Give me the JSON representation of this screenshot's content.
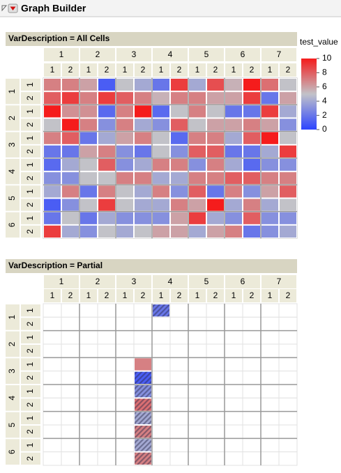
{
  "header": {
    "title": "Graph Builder"
  },
  "chart_data": [
    {
      "type": "heatmap",
      "title": "VarDescription = All Cells",
      "x_groups": [
        "1",
        "2",
        "3",
        "4",
        "5",
        "6",
        "7"
      ],
      "x_subgroups": [
        "1",
        "2"
      ],
      "y_groups": [
        "1",
        "2",
        "3",
        "4",
        "5",
        "6"
      ],
      "y_subgroups": [
        "1",
        "2"
      ],
      "values": [
        [
          7,
          7,
          6,
          1,
          5,
          4,
          2,
          9,
          4,
          8.5,
          5.5,
          10,
          7.5,
          5
        ],
        [
          8,
          9,
          7,
          9,
          8,
          7,
          5.5,
          7,
          7,
          6,
          6,
          9,
          2,
          6
        ],
        [
          10,
          6.5,
          6.5,
          1.5,
          7,
          10,
          1.5,
          5,
          7,
          5,
          2,
          2,
          9,
          4
        ],
        [
          5,
          10,
          7,
          3,
          7,
          4,
          3,
          8,
          5,
          6,
          6,
          7,
          6,
          3
        ],
        [
          7,
          8,
          2,
          4,
          6,
          7,
          5,
          1.5,
          7,
          7,
          4,
          8,
          10,
          5
        ],
        [
          2,
          2,
          6,
          7,
          3,
          2,
          5,
          3,
          8,
          8,
          2,
          2,
          4,
          9
        ],
        [
          1.5,
          4,
          5,
          8,
          3,
          4,
          7,
          7,
          3,
          7,
          4,
          1.5,
          3,
          3
        ],
        [
          3,
          3,
          5,
          5,
          7,
          7,
          4,
          4,
          7,
          7,
          8,
          8,
          7,
          7
        ],
        [
          4,
          7,
          2,
          7,
          5,
          4,
          7,
          3,
          8,
          2,
          7,
          3,
          6,
          8
        ],
        [
          1,
          3,
          5,
          9,
          5,
          4,
          4,
          7,
          6,
          10,
          4,
          7,
          4,
          5
        ],
        [
          2,
          5,
          2,
          4,
          3,
          3,
          3,
          6,
          9,
          4,
          3,
          8,
          3,
          3
        ],
        [
          9,
          4,
          3,
          5,
          4,
          5,
          6,
          6,
          4,
          6,
          7,
          2,
          3,
          4
        ]
      ],
      "colorbar": {
        "title": "test_value",
        "lim": [
          0,
          10
        ],
        "ticks": [
          0,
          2,
          4,
          6,
          8,
          10
        ],
        "colors": [
          "#2c44ff",
          "#c2c2c8",
          "#f51c1c"
        ]
      }
    },
    {
      "type": "heatmap",
      "title": "VarDescription = Partial",
      "x_groups": [
        "1",
        "2",
        "3",
        "4",
        "5",
        "6",
        "7"
      ],
      "x_subgroups": [
        "1",
        "2"
      ],
      "y_groups": [
        "1",
        "2",
        "3",
        "4",
        "5",
        "6"
      ],
      "y_subgroups": [
        "1",
        "2"
      ],
      "values": [
        [
          null,
          null,
          null,
          null,
          null,
          null,
          2,
          null,
          null,
          null,
          null,
          null,
          null,
          null
        ],
        [
          null,
          null,
          null,
          null,
          null,
          null,
          null,
          null,
          null,
          null,
          null,
          null,
          null,
          null
        ],
        [
          null,
          null,
          null,
          null,
          null,
          null,
          null,
          null,
          null,
          null,
          null,
          null,
          null,
          null
        ],
        [
          null,
          null,
          null,
          null,
          null,
          null,
          null,
          null,
          null,
          null,
          null,
          null,
          null,
          null
        ],
        [
          null,
          null,
          null,
          null,
          null,
          7,
          null,
          null,
          null,
          null,
          null,
          null,
          null,
          null
        ],
        [
          null,
          null,
          null,
          null,
          null,
          1,
          null,
          null,
          null,
          null,
          null,
          null,
          null,
          null
        ],
        [
          null,
          null,
          null,
          null,
          null,
          3,
          null,
          null,
          null,
          null,
          null,
          null,
          null,
          null
        ],
        [
          null,
          null,
          null,
          null,
          null,
          7.5,
          null,
          null,
          null,
          null,
          null,
          null,
          null,
          null
        ],
        [
          null,
          null,
          null,
          null,
          null,
          4,
          null,
          null,
          null,
          null,
          null,
          null,
          null,
          null
        ],
        [
          null,
          null,
          null,
          null,
          null,
          7,
          null,
          null,
          null,
          null,
          null,
          null,
          null,
          null
        ],
        [
          null,
          null,
          null,
          null,
          null,
          4,
          null,
          null,
          null,
          null,
          null,
          null,
          null,
          null
        ],
        [
          null,
          null,
          null,
          null,
          null,
          7,
          null,
          null,
          null,
          null,
          null,
          null,
          null,
          null
        ]
      ],
      "hatched": [
        [
          0,
          6
        ],
        [
          5,
          5
        ],
        [
          6,
          5
        ],
        [
          7,
          5
        ],
        [
          8,
          5
        ],
        [
          9,
          5
        ],
        [
          10,
          5
        ],
        [
          11,
          5
        ]
      ]
    }
  ]
}
